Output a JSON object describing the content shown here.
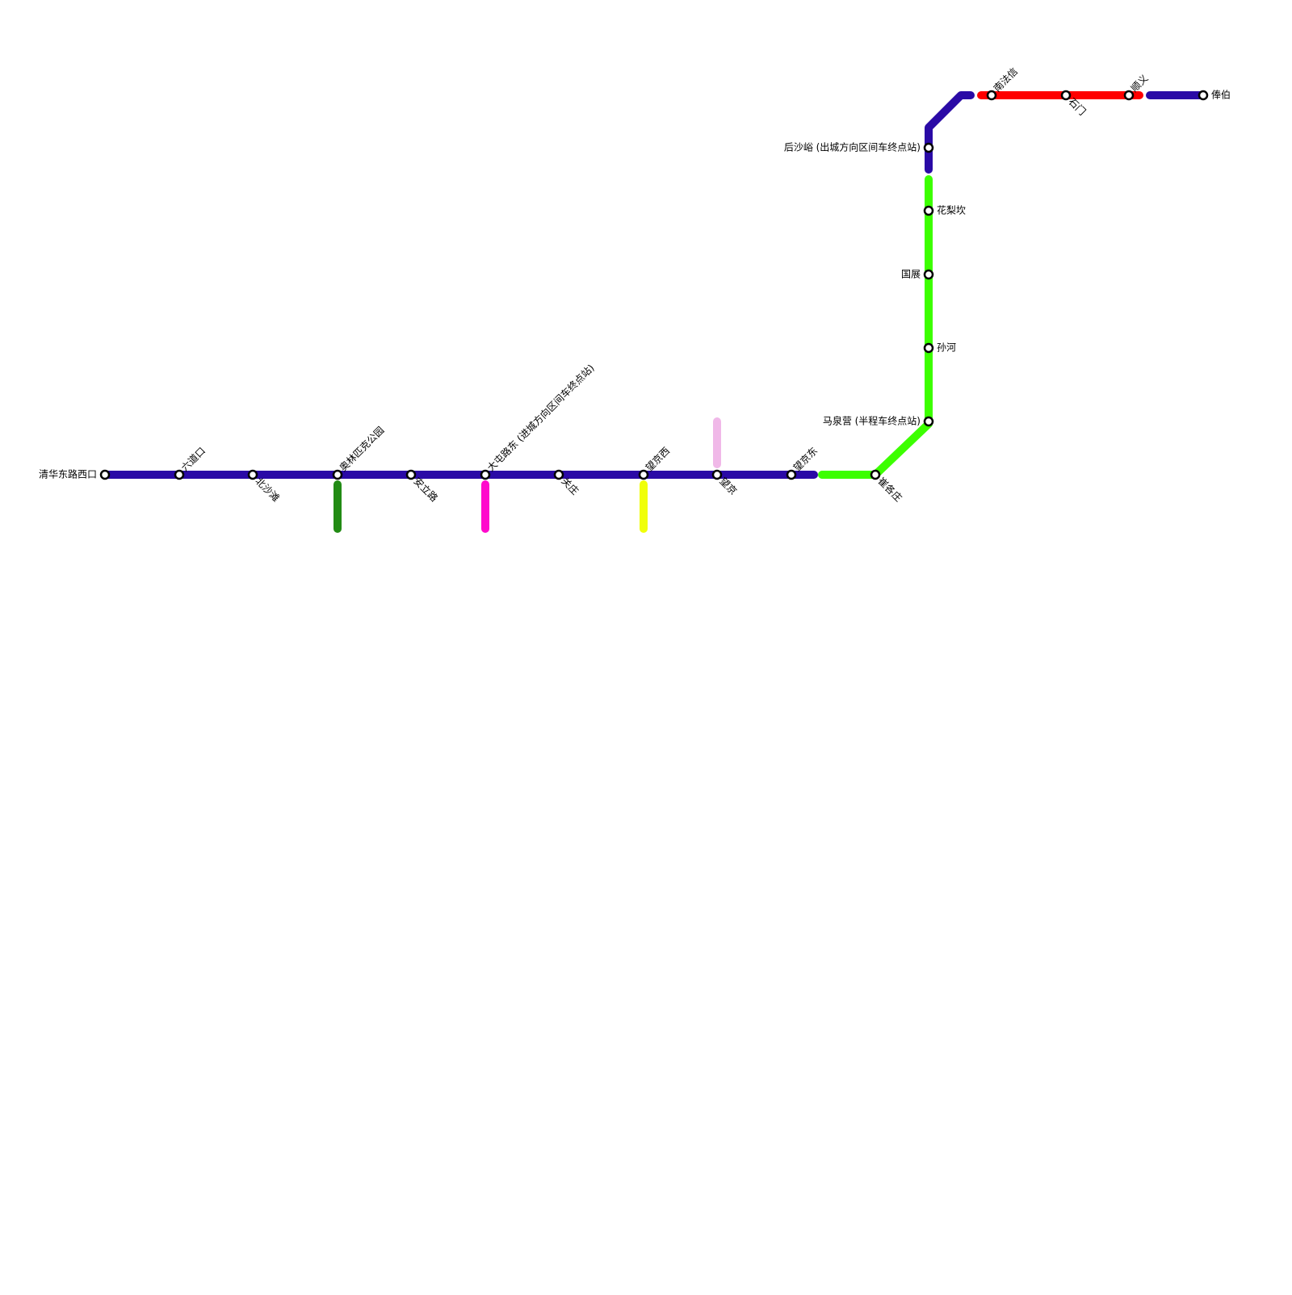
{
  "stations": [
    {
      "name": "清华东路西口"
    },
    {
      "name": "六道口"
    },
    {
      "name": "北沙滩"
    },
    {
      "name": "奥林匹克公园"
    },
    {
      "name": "安立路"
    },
    {
      "name": "大屯路东 (进城方向区间车终点站)"
    },
    {
      "name": "关庄"
    },
    {
      "name": "望京西"
    },
    {
      "name": "望京"
    },
    {
      "name": "望京东"
    },
    {
      "name": "崔各庄"
    },
    {
      "name": "马泉营 (半程车终点站)"
    },
    {
      "name": "孙河"
    },
    {
      "name": "国展"
    },
    {
      "name": "花梨坎"
    },
    {
      "name": "后沙峪 (出城方向区间车终点站)"
    },
    {
      "name": "南法信"
    },
    {
      "name": "石门"
    },
    {
      "name": "顺义"
    },
    {
      "name": "俸伯"
    }
  ]
}
